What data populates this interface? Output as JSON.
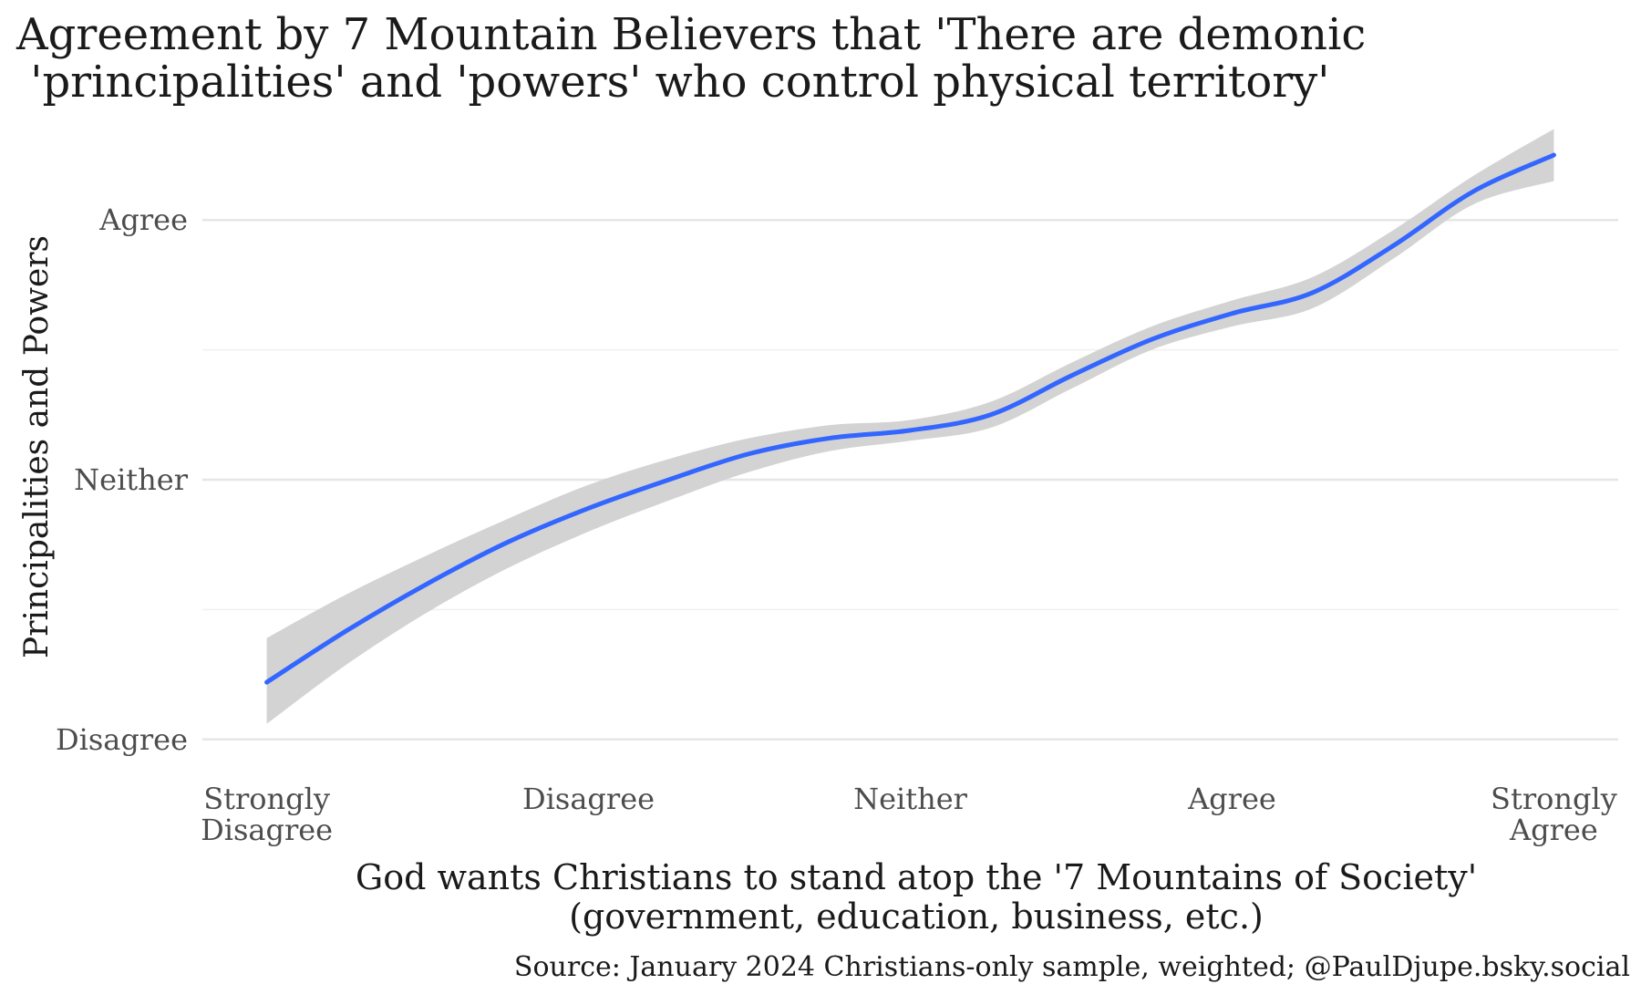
{
  "chart_data": {
    "type": "line",
    "title_lines": [
      "Agreement by 7 Mountain Believers that 'There are demonic",
      " 'principalities' and 'powers' who control physical territory'"
    ],
    "xlabel_lines": [
      "God wants Christians to stand atop the '7 Mountains of Society'",
      "(government, education, business, etc.)"
    ],
    "ylabel": "Principalities and Powers",
    "caption": "Source: January 2024 Christians-only sample, weighted; @PaulDjupe.bsky.social",
    "x_ticks": [
      {
        "value": 1,
        "lines": [
          "Strongly",
          "Disagree"
        ]
      },
      {
        "value": 2,
        "lines": [
          "Disagree"
        ]
      },
      {
        "value": 3,
        "lines": [
          "Neither"
        ]
      },
      {
        "value": 4,
        "lines": [
          "Agree"
        ]
      },
      {
        "value": 5,
        "lines": [
          "Strongly",
          "Agree"
        ]
      }
    ],
    "y_ticks": [
      {
        "value": 2,
        "label": "Disagree"
      },
      {
        "value": 3,
        "label": "Neither"
      },
      {
        "value": 4,
        "label": "Agree"
      }
    ],
    "xlim": [
      0.8,
      5.2
    ],
    "ylim": [
      1.95,
      4.25
    ],
    "grid": true,
    "series": [
      {
        "color": "#3366FF",
        "ribbon_color": "#d3d3d3",
        "x": [
          1.0,
          1.25,
          1.5,
          1.75,
          2.0,
          2.25,
          2.5,
          2.75,
          3.0,
          3.25,
          3.5,
          3.75,
          4.0,
          4.25,
          4.5,
          4.75,
          5.0
        ],
        "y": [
          2.22,
          2.42,
          2.6,
          2.76,
          2.89,
          3.0,
          3.1,
          3.16,
          3.19,
          3.25,
          3.4,
          3.54,
          3.64,
          3.72,
          3.9,
          4.11,
          4.25
        ],
        "lower": [
          2.06,
          2.29,
          2.49,
          2.66,
          2.8,
          2.92,
          3.03,
          3.11,
          3.15,
          3.2,
          3.35,
          3.5,
          3.59,
          3.66,
          3.85,
          4.06,
          4.15
        ],
        "upper": [
          2.39,
          2.56,
          2.71,
          2.85,
          2.98,
          3.08,
          3.16,
          3.21,
          3.23,
          3.3,
          3.45,
          3.59,
          3.69,
          3.78,
          3.96,
          4.17,
          4.35
        ]
      }
    ]
  }
}
